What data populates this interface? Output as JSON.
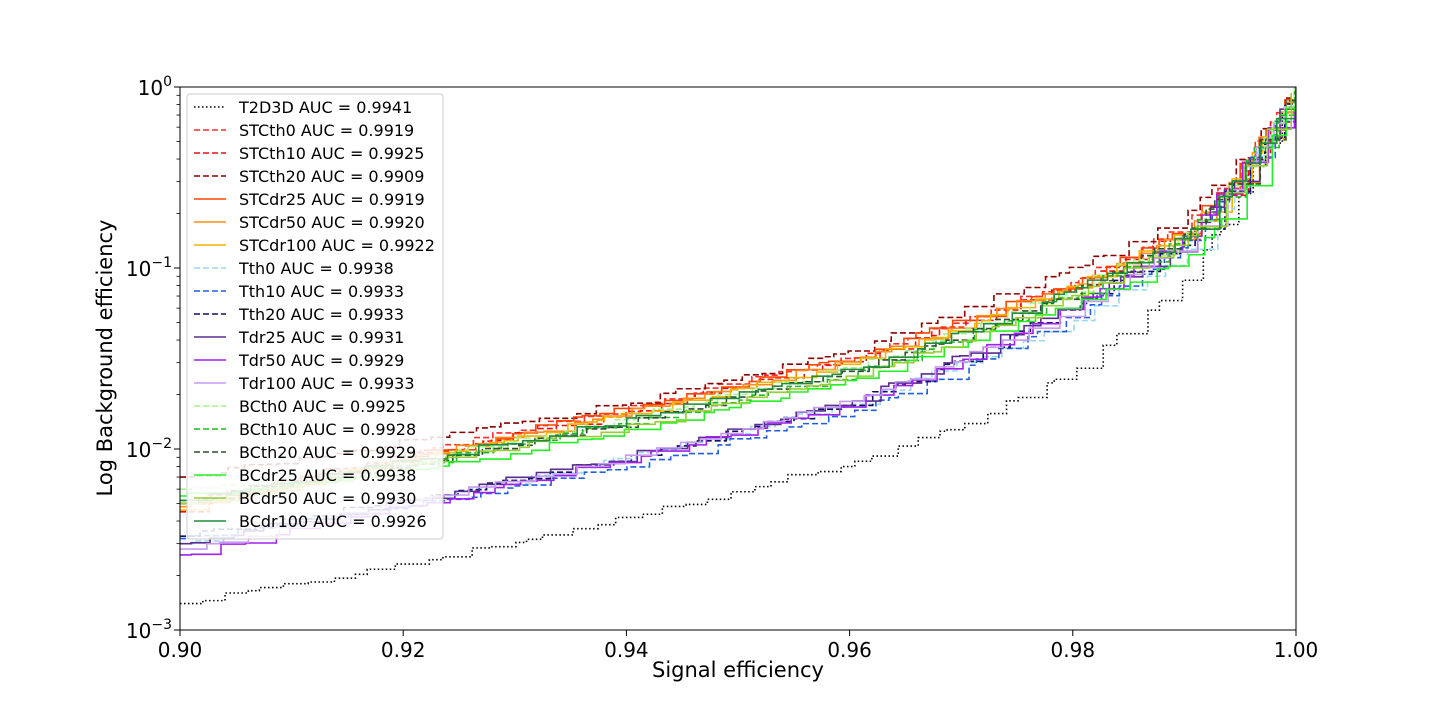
{
  "chart_data": {
    "type": "line",
    "title": "",
    "xlabel": "Signal efficiency",
    "ylabel": "Log Background efficiency",
    "xlim": [
      0.9,
      1.0
    ],
    "ylim": [
      0.001,
      1
    ],
    "yscale": "log",
    "grid": false,
    "legend_position": "upper-left",
    "x_ticks": [
      {
        "value": 0.9,
        "label": "0.90"
      },
      {
        "value": 0.92,
        "label": "0.92"
      },
      {
        "value": 0.94,
        "label": "0.94"
      },
      {
        "value": 0.96,
        "label": "0.96"
      },
      {
        "value": 0.98,
        "label": "0.98"
      },
      {
        "value": 1.0,
        "label": "1.00"
      }
    ],
    "y_ticks": [
      {
        "value": 0.001,
        "base": "10",
        "exp": "−3"
      },
      {
        "value": 0.01,
        "base": "10",
        "exp": "−2"
      },
      {
        "value": 0.1,
        "base": "10",
        "exp": "−1"
      },
      {
        "value": 1,
        "base": "10",
        "exp": "0"
      }
    ],
    "x": [
      0.9,
      0.92,
      0.94,
      0.96,
      0.97,
      0.98,
      0.99,
      0.995,
      1.0
    ],
    "series": [
      {
        "name": "T2D3D AUC = 0.9941",
        "color": "#000000",
        "dash": "1.5,2.5",
        "values": [
          0.0014,
          0.0023,
          0.0042,
          0.0085,
          0.0135,
          0.027,
          0.085,
          0.26,
          1.0
        ]
      },
      {
        "name": "STCth0 AUC = 0.9919",
        "color": "#ff2a2a",
        "dash": "6,3",
        "values": [
          0.005,
          0.0095,
          0.017,
          0.032,
          0.052,
          0.085,
          0.17,
          0.38,
          1.0
        ]
      },
      {
        "name": "STCth10 AUC = 0.9925",
        "color": "#e81010",
        "dash": "6,3",
        "values": [
          0.0045,
          0.009,
          0.016,
          0.031,
          0.05,
          0.082,
          0.16,
          0.35,
          1.0
        ]
      },
      {
        "name": "STCth20 AUC = 0.9909",
        "color": "#8b0000",
        "dash": "6,3",
        "values": [
          0.007,
          0.011,
          0.018,
          0.035,
          0.06,
          0.1,
          0.2,
          0.42,
          1.0
        ]
      },
      {
        "name": "STCdr25 AUC = 0.9919",
        "color": "#ff4500",
        "dash": "",
        "values": [
          0.005,
          0.009,
          0.017,
          0.032,
          0.052,
          0.084,
          0.17,
          0.37,
          1.0
        ]
      },
      {
        "name": "STCdr50 AUC = 0.9920",
        "color": "#ff8c1a",
        "dash": "",
        "values": [
          0.0048,
          0.0088,
          0.016,
          0.031,
          0.05,
          0.082,
          0.16,
          0.36,
          1.0
        ]
      },
      {
        "name": "STCdr100 AUC = 0.9922",
        "color": "#f0b400",
        "dash": "",
        "values": [
          0.0046,
          0.0087,
          0.0155,
          0.03,
          0.048,
          0.08,
          0.16,
          0.35,
          1.0
        ]
      },
      {
        "name": "Tth0 AUC = 0.9938",
        "color": "#9ad7f0",
        "dash": "6,3",
        "values": [
          0.003,
          0.005,
          0.009,
          0.018,
          0.03,
          0.052,
          0.12,
          0.3,
          1.0
        ]
      },
      {
        "name": "Tth10 AUC = 0.9933",
        "color": "#1f5fe0",
        "dash": "6,3",
        "values": [
          0.0032,
          0.0048,
          0.008,
          0.016,
          0.028,
          0.055,
          0.13,
          0.32,
          1.0
        ]
      },
      {
        "name": "Tth20 AUC = 0.9933",
        "color": "#101060",
        "dash": "6,3",
        "values": [
          0.0033,
          0.0052,
          0.009,
          0.018,
          0.032,
          0.062,
          0.14,
          0.33,
          1.0
        ]
      },
      {
        "name": "Tdr25 AUC = 0.9931",
        "color": "#5a2d91",
        "dash": "",
        "values": [
          0.003,
          0.0052,
          0.0092,
          0.0185,
          0.033,
          0.064,
          0.14,
          0.34,
          1.0
        ]
      },
      {
        "name": "Tdr50 AUC = 0.9929",
        "color": "#a020f0",
        "dash": "",
        "values": [
          0.0026,
          0.0048,
          0.0088,
          0.018,
          0.032,
          0.062,
          0.15,
          0.36,
          1.0
        ]
      },
      {
        "name": "Tdr100 AUC = 0.9933",
        "color": "#c89af0",
        "dash": "",
        "values": [
          0.0028,
          0.0051,
          0.009,
          0.0185,
          0.032,
          0.06,
          0.14,
          0.33,
          1.0
        ]
      },
      {
        "name": "BCth0 AUC = 0.9925",
        "color": "#a8f08a",
        "dash": "6,3",
        "values": [
          0.006,
          0.0085,
          0.015,
          0.028,
          0.045,
          0.078,
          0.15,
          0.33,
          1.0
        ]
      },
      {
        "name": "BCth10 AUC = 0.9928",
        "color": "#22b822",
        "dash": "6,3",
        "values": [
          0.0052,
          0.0082,
          0.014,
          0.026,
          0.042,
          0.072,
          0.15,
          0.34,
          1.0
        ]
      },
      {
        "name": "BCth20 AUC = 0.9929",
        "color": "#2f4f2f",
        "dash": "6,3",
        "values": [
          0.005,
          0.008,
          0.014,
          0.027,
          0.043,
          0.074,
          0.15,
          0.34,
          1.0
        ]
      },
      {
        "name": "BCdr25 AUC = 0.9938",
        "color": "#22f022",
        "dash": "",
        "values": [
          0.0055,
          0.0075,
          0.0125,
          0.024,
          0.038,
          0.065,
          0.11,
          0.24,
          1.0
        ]
      },
      {
        "name": "BCdr50 AUC = 0.9930",
        "color": "#9acd32",
        "dash": "",
        "values": [
          0.005,
          0.008,
          0.0135,
          0.025,
          0.04,
          0.07,
          0.14,
          0.33,
          1.0
        ]
      },
      {
        "name": "BCdr100 AUC = 0.9926",
        "color": "#1e8c3a",
        "dash": "",
        "values": [
          0.0052,
          0.0085,
          0.0145,
          0.0275,
          0.044,
          0.076,
          0.15,
          0.34,
          1.0
        ]
      }
    ]
  }
}
